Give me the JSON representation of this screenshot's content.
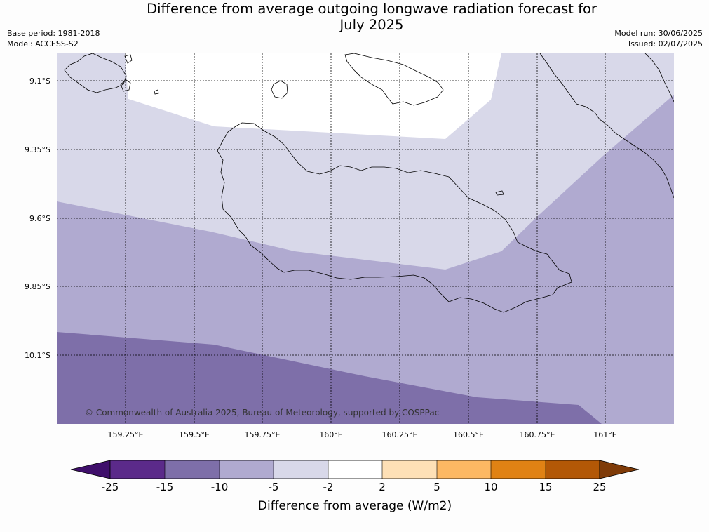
{
  "header": {
    "title_line1": "Difference from average outgoing longwave radiation forecast for",
    "title_line2": "July 2025",
    "base_period": "Base period: 1981-2018",
    "model": "Model: ACCESS-S2",
    "model_run": "Model run: 30/06/2025",
    "issued": "Issued: 02/07/2025"
  },
  "map": {
    "lat_labels": [
      "9.1°S",
      "9.35°S",
      "9.6°S",
      "9.85°S",
      "10.1°S"
    ],
    "lon_labels": [
      "159.25°E",
      "159.5°E",
      "159.75°E",
      "160°E",
      "160.25°E",
      "160.5°E",
      "160.75°E",
      "161°E"
    ],
    "credit": "© Commonwealth of Australia 2025, Bureau of Meteorology, supported by COSPPac",
    "colors": {
      "band_-15_-10": "#7e6fa9",
      "band_-10_-5": "#b0aad0",
      "band_-5_-2": "#d8d8e9",
      "band_-2_2": "#ffffff",
      "gridline": "#000000",
      "coastline": "#000000"
    }
  },
  "colorbar": {
    "title": "Difference from average (W/m2)",
    "tick_labels": [
      "-25",
      "-15",
      "-10",
      "-5",
      "-2",
      "2",
      "5",
      "10",
      "15",
      "25"
    ],
    "colors": [
      "#3f0f6b",
      "#5b2a8a",
      "#7e6fa9",
      "#b0aad0",
      "#d8d8e9",
      "#ffffff",
      "#fee0b6",
      "#fdb863",
      "#e08214",
      "#b35806",
      "#7f3b08"
    ]
  }
}
